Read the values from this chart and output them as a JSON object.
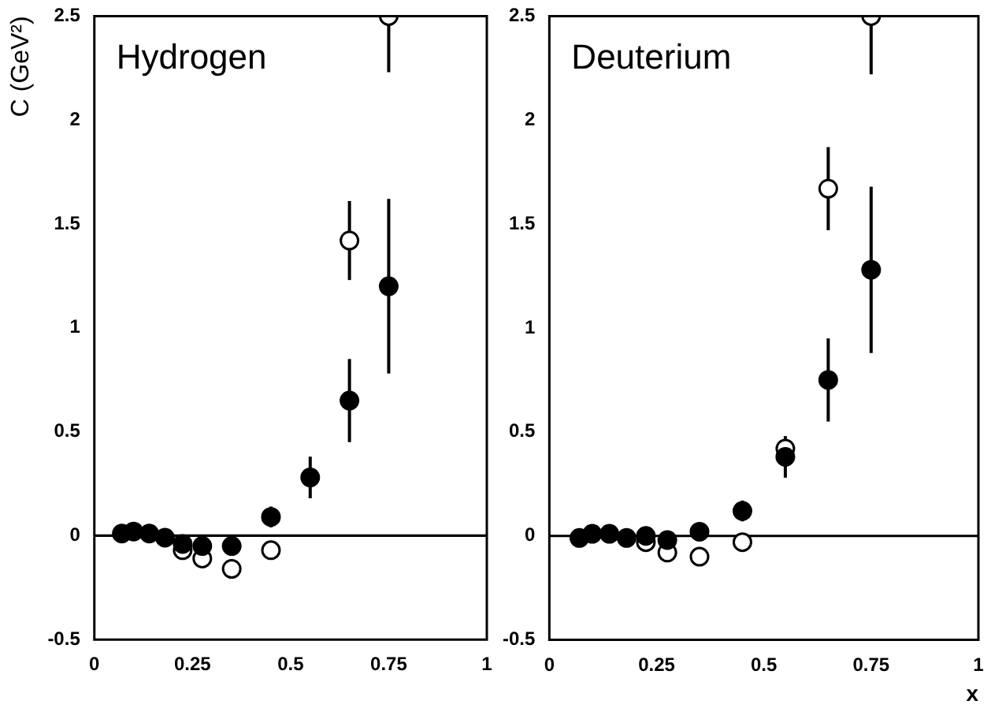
{
  "chart_data": [
    {
      "type": "scatter",
      "title": "Hydrogen",
      "ylabel": "C (GeV²)",
      "x": [
        0.07,
        0.1,
        0.14,
        0.18,
        0.225,
        0.275,
        0.35,
        0.45,
        0.55,
        0.65,
        0.75
      ],
      "series": [
        {
          "color": "#000000",
          "values": [
            0.01,
            0.02,
            0.01,
            -0.01,
            -0.04,
            -0.05,
            -0.05,
            0.09,
            0.28,
            0.65,
            1.2
          ],
          "errors": [
            null,
            null,
            null,
            null,
            null,
            null,
            null,
            0.05,
            0.1,
            0.2,
            0.42
          ]
        },
        {
          "color": "#ffffff",
          "values": [
            null,
            null,
            null,
            null,
            -0.07,
            -0.11,
            -0.16,
            -0.07,
            null,
            1.42,
            2.5
          ],
          "errors": [
            null,
            null,
            null,
            null,
            null,
            null,
            null,
            null,
            null,
            0.19,
            [
              2.23,
              2.5
            ]
          ]
        }
      ],
      "xlim": [
        0,
        1
      ],
      "xticks": [
        0,
        0.25,
        0.5,
        0.75,
        1
      ],
      "ylim": [
        -0.5,
        2.5
      ],
      "yticks": [
        -0.5,
        0,
        0.5,
        1,
        1.5,
        2,
        2.5
      ],
      "ref_lines": [
        {
          "axis": "y",
          "value": 0
        }
      ],
      "grid": false,
      "legend": false,
      "marker": "circle"
    },
    {
      "type": "scatter",
      "title": "Deuterium",
      "xlabel": "x",
      "x": [
        0.07,
        0.1,
        0.14,
        0.18,
        0.225,
        0.275,
        0.35,
        0.45,
        0.55,
        0.65,
        0.75
      ],
      "series": [
        {
          "color": "#000000",
          "values": [
            -0.01,
            0.01,
            0.01,
            -0.01,
            0.0,
            -0.02,
            0.02,
            0.12,
            0.38,
            0.75,
            1.28
          ],
          "errors": [
            null,
            null,
            null,
            null,
            null,
            null,
            null,
            0.05,
            0.1,
            0.2,
            0.4
          ]
        },
        {
          "color": "#ffffff",
          "values": [
            null,
            null,
            null,
            null,
            -0.03,
            -0.08,
            -0.1,
            -0.03,
            0.42,
            1.67,
            2.5
          ],
          "errors": [
            null,
            null,
            null,
            null,
            null,
            null,
            null,
            null,
            null,
            0.2,
            [
              2.22,
              2.5
            ]
          ]
        }
      ],
      "xlim": [
        0,
        1
      ],
      "xticks": [
        0,
        0.25,
        0.5,
        0.75,
        1
      ],
      "ylim": [
        -0.5,
        2.5
      ],
      "yticks": [
        -0.5,
        0,
        0.5,
        1,
        1.5,
        2,
        2.5
      ],
      "ref_lines": [
        {
          "axis": "y",
          "value": 0
        }
      ],
      "grid": false,
      "legend": false,
      "marker": "circle"
    }
  ]
}
